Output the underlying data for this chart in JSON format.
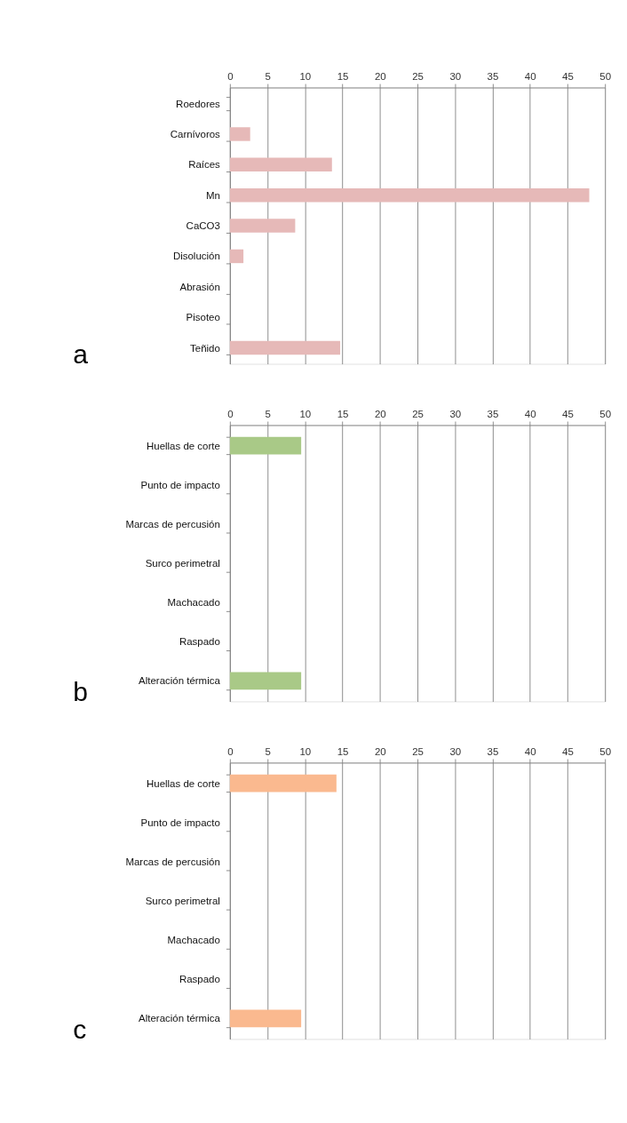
{
  "chart_data": [
    {
      "type": "bar",
      "orientation": "horizontal",
      "categories": [
        "Roedores",
        "Carnívoros",
        "Raíces",
        "Mn",
        "CaCO3",
        "Disolución",
        "Abrasión",
        "Pisoteo",
        "Teñido"
      ],
      "values": [
        0,
        2.7,
        13.6,
        47.9,
        8.7,
        1.8,
        0,
        0,
        14.7
      ],
      "color": "#e6b9b8",
      "xlim": [
        0,
        50
      ],
      "xticks": [
        0,
        5,
        10,
        15,
        20,
        25,
        30,
        35,
        40,
        45,
        50
      ],
      "grid": "x",
      "annotations": [
        "a"
      ]
    },
    {
      "type": "bar",
      "orientation": "horizontal",
      "categories": [
        "Huellas de corte",
        "Punto de impacto",
        "Marcas de percusión",
        "Surco perimetral",
        "Machacado",
        "Raspado",
        "Alteración térmica"
      ],
      "values": [
        9.5,
        0,
        0,
        0,
        0,
        0,
        9.5
      ],
      "color": "#a9c987",
      "xlim": [
        0,
        50
      ],
      "xticks": [
        0,
        5,
        10,
        15,
        20,
        25,
        30,
        35,
        40,
        45,
        50
      ],
      "grid": "x",
      "annotations": [
        "b"
      ]
    },
    {
      "type": "bar",
      "orientation": "horizontal",
      "categories": [
        "Huellas de corte",
        "Punto de impacto",
        "Marcas de percusión",
        "Surco perimetral",
        "Machacado",
        "Raspado",
        "Alteración térmica"
      ],
      "values": [
        14.2,
        0,
        0,
        0,
        0,
        0,
        9.5
      ],
      "color": "#fab98f",
      "xlim": [
        0,
        50
      ],
      "xticks": [
        0,
        5,
        10,
        15,
        20,
        25,
        30,
        35,
        40,
        45,
        50
      ],
      "grid": "x",
      "annotations": [
        "c"
      ]
    }
  ]
}
